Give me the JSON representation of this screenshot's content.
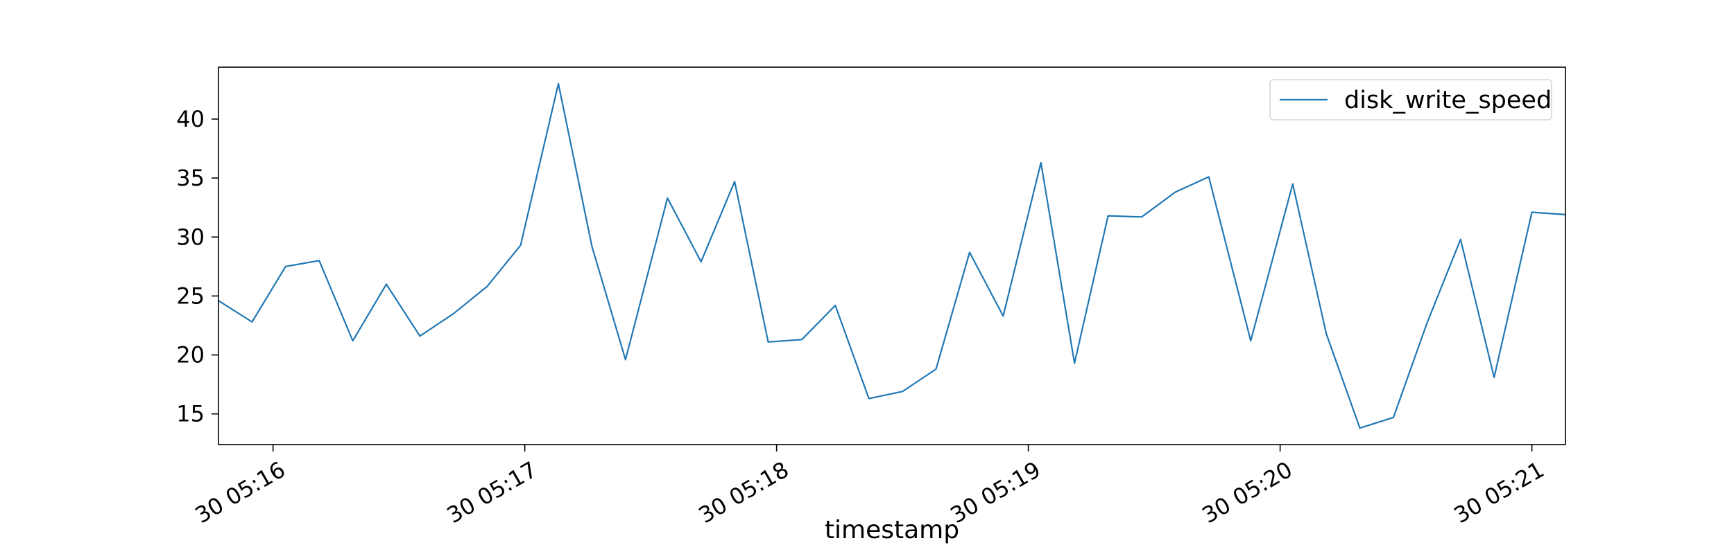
{
  "chart_data": {
    "type": "line",
    "title": "",
    "xlabel": "timestamp",
    "ylabel": "",
    "x_type": "time",
    "x": [
      "30 05:15:47",
      "30 05:15:55",
      "30 05:16:03",
      "30 05:16:11",
      "30 05:16:19",
      "30 05:16:27",
      "30 05:16:35",
      "30 05:16:43",
      "30 05:16:51",
      "30 05:16:59",
      "30 05:17:08",
      "30 05:17:16",
      "30 05:17:24",
      "30 05:17:34",
      "30 05:17:42",
      "30 05:17:50",
      "30 05:17:58",
      "30 05:18:06",
      "30 05:18:14",
      "30 05:18:22",
      "30 05:18:30",
      "30 05:18:38",
      "30 05:18:46",
      "30 05:18:54",
      "30 05:19:03",
      "30 05:19:11",
      "30 05:19:19",
      "30 05:19:27",
      "30 05:19:35",
      "30 05:19:43",
      "30 05:19:53",
      "30 05:20:03",
      "30 05:20:11",
      "30 05:20:19",
      "30 05:20:27",
      "30 05:20:35",
      "30 05:20:43",
      "30 05:20:51",
      "30 05:21:00",
      "30 05:21:08"
    ],
    "series": [
      {
        "name": "disk_write_speed",
        "color": "#1f77b4",
        "values": [
          24.6,
          22.8,
          27.5,
          28.0,
          21.2,
          26.0,
          21.6,
          23.5,
          25.8,
          29.3,
          43.0,
          29.2,
          19.6,
          33.3,
          27.9,
          34.7,
          21.1,
          21.3,
          24.2,
          16.3,
          16.9,
          18.8,
          28.7,
          23.3,
          36.3,
          19.3,
          31.8,
          31.7,
          33.8,
          35.1,
          21.2,
          34.5,
          21.8,
          13.8,
          14.7,
          22.7,
          29.8,
          18.1,
          32.1,
          31.9
        ]
      }
    ],
    "x_ticks": [
      "30 05:16",
      "30 05:17",
      "30 05:18",
      "30 05:19",
      "30 05:20",
      "30 05:21"
    ],
    "y_ticks": [
      15,
      20,
      25,
      30,
      35,
      40
    ],
    "xlim": [
      "30 05:15:47",
      "30 05:21:08"
    ],
    "ylim": [
      12.4,
      44.4
    ],
    "grid": false,
    "legend_position": "top-right"
  }
}
